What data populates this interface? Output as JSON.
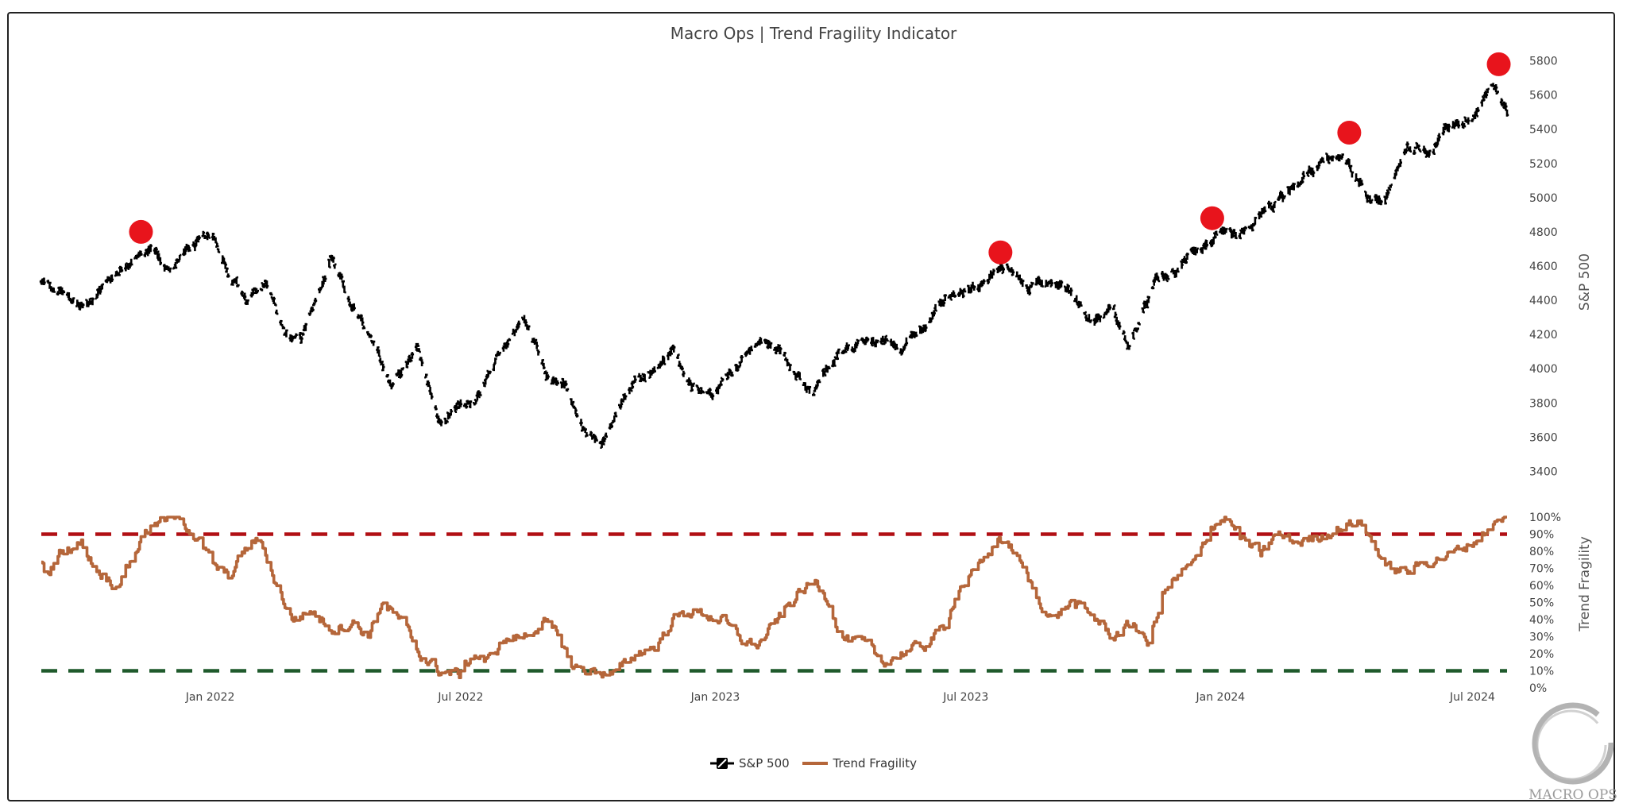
{
  "chart_data": {
    "type": "line",
    "title": "Macro Ops | Trend Fragility Indicator",
    "x_range": [
      "2021-09-01",
      "2024-07-26"
    ],
    "x_ticks": [
      "Jan 2022",
      "Jul 2022",
      "Jan 2023",
      "Jul 2023",
      "Jan 2024",
      "Jul 2024"
    ],
    "legend_placement": "bottom-center",
    "price_panel": {
      "ylabel": "S&P 500",
      "ylim": [
        3300,
        5900
      ],
      "yticks": [
        3400,
        3600,
        3800,
        4000,
        4200,
        4400,
        4600,
        4800,
        5000,
        5200,
        5400,
        5600,
        5800
      ],
      "ytick_labels": [
        "3400",
        "3600",
        "3800",
        "4000",
        "4200",
        "4400",
        "4600",
        "4800",
        "5000",
        "5200",
        "5400",
        "5600",
        "5800"
      ],
      "series": [
        {
          "name": "S&P 500",
          "color": "#000000",
          "style": "ohlc",
          "points": [
            [
              "2021-09-01",
              4500
            ],
            [
              "2021-09-15",
              4460
            ],
            [
              "2021-10-01",
              4350
            ],
            [
              "2021-10-15",
              4480
            ],
            [
              "2021-11-01",
              4620
            ],
            [
              "2021-11-20",
              4700
            ],
            [
              "2021-12-01",
              4580
            ],
            [
              "2021-12-15",
              4680
            ],
            [
              "2022-01-03",
              4790
            ],
            [
              "2022-01-15",
              4560
            ],
            [
              "2022-01-28",
              4380
            ],
            [
              "2022-02-10",
              4500
            ],
            [
              "2022-02-24",
              4220
            ],
            [
              "2022-03-08",
              4170
            ],
            [
              "2022-03-29",
              4630
            ],
            [
              "2022-04-12",
              4400
            ],
            [
              "2022-04-29",
              4130
            ],
            [
              "2022-05-12",
              3920
            ],
            [
              "2022-05-31",
              4140
            ],
            [
              "2022-06-16",
              3670
            ],
            [
              "2022-06-30",
              3790
            ],
            [
              "2022-07-15",
              3850
            ],
            [
              "2022-07-31",
              4120
            ],
            [
              "2022-08-16",
              4300
            ],
            [
              "2022-09-01",
              3970
            ],
            [
              "2022-09-15",
              3900
            ],
            [
              "2022-09-30",
              3590
            ],
            [
              "2022-10-12",
              3580
            ],
            [
              "2022-10-31",
              3880
            ],
            [
              "2022-11-15",
              3990
            ],
            [
              "2022-12-01",
              4080
            ],
            [
              "2022-12-15",
              3900
            ],
            [
              "2022-12-29",
              3830
            ],
            [
              "2023-01-15",
              3990
            ],
            [
              "2023-02-02",
              4170
            ],
            [
              "2023-02-20",
              4080
            ],
            [
              "2023-03-13",
              3850
            ],
            [
              "2023-03-31",
              4100
            ],
            [
              "2023-04-15",
              4140
            ],
            [
              "2023-05-01",
              4160
            ],
            [
              "2023-05-15",
              4120
            ],
            [
              "2023-06-01",
              4250
            ],
            [
              "2023-06-15",
              4420
            ],
            [
              "2023-07-01",
              4450
            ],
            [
              "2023-07-31",
              4590
            ],
            [
              "2023-08-15",
              4480
            ],
            [
              "2023-08-31",
              4510
            ],
            [
              "2023-09-15",
              4460
            ],
            [
              "2023-09-29",
              4290
            ],
            [
              "2023-10-15",
              4340
            ],
            [
              "2023-10-27",
              4120
            ],
            [
              "2023-11-15",
              4500
            ],
            [
              "2023-12-01",
              4590
            ],
            [
              "2023-12-15",
              4720
            ],
            [
              "2023-12-29",
              4770
            ],
            [
              "2024-01-15",
              4780
            ],
            [
              "2024-02-01",
              4900
            ],
            [
              "2024-02-15",
              5000
            ],
            [
              "2024-03-01",
              5130
            ],
            [
              "2024-03-28",
              5250
            ],
            [
              "2024-04-19",
              4970
            ],
            [
              "2024-05-01",
              5020
            ],
            [
              "2024-05-15",
              5300
            ],
            [
              "2024-06-01",
              5280
            ],
            [
              "2024-06-15",
              5430
            ],
            [
              "2024-07-01",
              5470
            ],
            [
              "2024-07-16",
              5660
            ],
            [
              "2024-07-26",
              5480
            ]
          ]
        }
      ],
      "signals": {
        "color": "#e8141c",
        "points": [
          [
            "2021-11-12",
            4800
          ],
          [
            "2023-07-26",
            4680
          ],
          [
            "2023-12-26",
            4880
          ],
          [
            "2024-04-03",
            5380
          ],
          [
            "2024-07-20",
            5780
          ]
        ]
      }
    },
    "indicator_panel": {
      "ylabel": "Trend Fragility",
      "ylim": [
        0,
        100
      ],
      "yticks": [
        0,
        10,
        20,
        30,
        40,
        50,
        60,
        70,
        80,
        90,
        100
      ],
      "ytick_labels": [
        "0%",
        "10%",
        "20%",
        "30%",
        "40%",
        "50%",
        "60%",
        "70%",
        "80%",
        "90%",
        "100%"
      ],
      "thresholds": [
        {
          "value": 90,
          "color": "#b10f14"
        },
        {
          "value": 10,
          "color": "#1f5a2c"
        }
      ],
      "series": [
        {
          "name": "Trend Fragility",
          "color": "#b5663a",
          "style": "step",
          "points": [
            [
              "2021-09-01",
              75
            ],
            [
              "2021-09-05",
              65
            ],
            [
              "2021-09-15",
              80
            ],
            [
              "2021-09-30",
              85
            ],
            [
              "2021-10-10",
              70
            ],
            [
              "2021-10-25",
              60
            ],
            [
              "2021-11-05",
              75
            ],
            [
              "2021-11-15",
              92
            ],
            [
              "2021-11-25",
              97
            ],
            [
              "2021-12-10",
              100
            ],
            [
              "2021-12-22",
              88
            ],
            [
              "2022-01-05",
              70
            ],
            [
              "2022-01-15",
              65
            ],
            [
              "2022-01-25",
              80
            ],
            [
              "2022-02-05",
              88
            ],
            [
              "2022-02-18",
              60
            ],
            [
              "2022-03-01",
              40
            ],
            [
              "2022-03-15",
              45
            ],
            [
              "2022-03-30",
              35
            ],
            [
              "2022-04-15",
              38
            ],
            [
              "2022-04-25",
              30
            ],
            [
              "2022-05-05",
              50
            ],
            [
              "2022-05-20",
              38
            ],
            [
              "2022-06-01",
              20
            ],
            [
              "2022-06-15",
              10
            ],
            [
              "2022-06-30",
              8
            ],
            [
              "2022-07-10",
              20
            ],
            [
              "2022-07-20",
              15
            ],
            [
              "2022-08-01",
              28
            ],
            [
              "2022-08-15",
              30
            ],
            [
              "2022-08-30",
              38
            ],
            [
              "2022-09-10",
              30
            ],
            [
              "2022-09-20",
              12
            ],
            [
              "2022-10-05",
              10
            ],
            [
              "2022-10-20",
              8
            ],
            [
              "2022-11-05",
              20
            ],
            [
              "2022-11-20",
              25
            ],
            [
              "2022-12-01",
              40
            ],
            [
              "2022-12-15",
              45
            ],
            [
              "2023-01-05",
              40
            ],
            [
              "2023-01-20",
              28
            ],
            [
              "2023-02-01",
              25
            ],
            [
              "2023-02-15",
              40
            ],
            [
              "2023-03-01",
              55
            ],
            [
              "2023-03-15",
              62
            ],
            [
              "2023-03-25",
              50
            ],
            [
              "2023-04-01",
              30
            ],
            [
              "2023-04-20",
              25
            ],
            [
              "2023-05-01",
              15
            ],
            [
              "2023-05-15",
              20
            ],
            [
              "2023-06-01",
              25
            ],
            [
              "2023-06-15",
              35
            ],
            [
              "2023-06-25",
              58
            ],
            [
              "2023-07-10",
              70
            ],
            [
              "2023-07-25",
              88
            ],
            [
              "2023-08-05",
              80
            ],
            [
              "2023-08-20",
              55
            ],
            [
              "2023-09-01",
              40
            ],
            [
              "2023-09-15",
              50
            ],
            [
              "2023-10-01",
              42
            ],
            [
              "2023-10-15",
              30
            ],
            [
              "2023-10-30",
              38
            ],
            [
              "2023-11-10",
              25
            ],
            [
              "2023-11-20",
              55
            ],
            [
              "2023-12-01",
              65
            ],
            [
              "2023-12-15",
              75
            ],
            [
              "2023-12-25",
              95
            ],
            [
              "2024-01-05",
              100
            ],
            [
              "2024-01-15",
              88
            ],
            [
              "2024-01-30",
              78
            ],
            [
              "2024-02-10",
              90
            ],
            [
              "2024-02-25",
              85
            ],
            [
              "2024-03-10",
              88
            ],
            [
              "2024-03-25",
              93
            ],
            [
              "2024-04-10",
              98
            ],
            [
              "2024-04-20",
              85
            ],
            [
              "2024-05-01",
              70
            ],
            [
              "2024-05-15",
              68
            ],
            [
              "2024-06-01",
              75
            ],
            [
              "2024-06-15",
              78
            ],
            [
              "2024-07-01",
              85
            ],
            [
              "2024-07-15",
              95
            ],
            [
              "2024-07-26",
              100
            ]
          ]
        }
      ]
    }
  }
}
